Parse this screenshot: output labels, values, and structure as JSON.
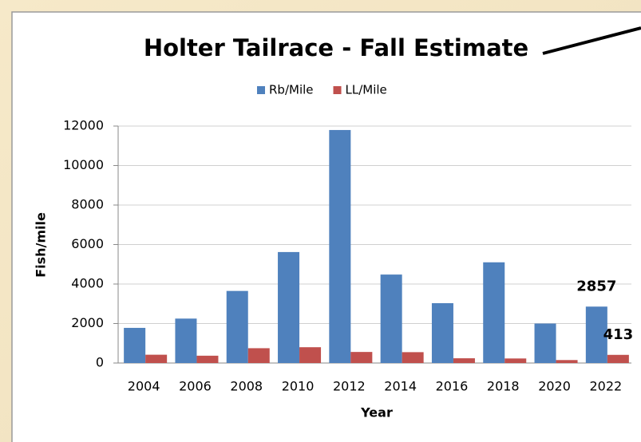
{
  "chart_data": {
    "type": "bar",
    "title": "Holter Tailrace - Fall Estimate",
    "x_label": "Year",
    "y_label": "Fish/mile",
    "categories": [
      "2004",
      "2006",
      "2008",
      "2010",
      "2012",
      "2014",
      "2016",
      "2018",
      "2020",
      "2022"
    ],
    "series": [
      {
        "name": "Rb/Mile",
        "color": "#4f81bd",
        "values": [
          1780,
          2250,
          3650,
          5620,
          11800,
          4480,
          3030,
          5100,
          2000,
          2857
        ],
        "value_labels": [
          null,
          null,
          null,
          null,
          null,
          null,
          null,
          null,
          null,
          "2857"
        ]
      },
      {
        "name": "LL/Mile",
        "color": "#c0504d",
        "values": [
          420,
          370,
          750,
          800,
          560,
          550,
          240,
          230,
          150,
          413
        ],
        "value_labels": [
          null,
          null,
          null,
          null,
          null,
          null,
          null,
          null,
          null,
          "413"
        ]
      }
    ],
    "ylim": [
      0,
      12000
    ],
    "yticks": [
      0,
      2000,
      4000,
      6000,
      8000,
      10000,
      12000
    ],
    "grid": true
  }
}
